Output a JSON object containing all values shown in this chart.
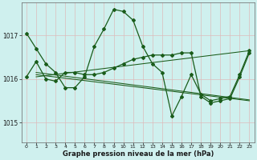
{
  "xlabel": "Graphe pression niveau de la mer (hPa)",
  "background_color": "#cff0ee",
  "grid_color": "#aaddcc",
  "line_color": "#1a5c1a",
  "ylim": [
    1014.55,
    1017.75
  ],
  "yticks": [
    1015,
    1016,
    1017
  ],
  "xlim": [
    -0.5,
    23.5
  ],
  "xticks": [
    0,
    1,
    2,
    3,
    4,
    5,
    6,
    7,
    8,
    9,
    10,
    11,
    12,
    13,
    14,
    15,
    16,
    17,
    18,
    19,
    20,
    21,
    22,
    23
  ],
  "series1": [
    1017.05,
    1016.7,
    1016.35,
    1016.15,
    1015.8,
    1015.8,
    1016.05,
    1016.75,
    1017.15,
    1017.6,
    1017.55,
    1017.35,
    1016.75,
    1016.35,
    1016.15,
    1015.15,
    1015.6,
    1016.1,
    1015.65,
    1015.5,
    1015.55,
    1015.6,
    1016.1,
    1016.65
  ],
  "series2": [
    1016.05,
    1016.4,
    1016.0,
    1015.95,
    1016.15,
    1016.15,
    1016.1,
    1016.1,
    1016.15,
    1016.25,
    1016.35,
    1016.45,
    1016.5,
    1016.55,
    1016.55,
    1016.55,
    1016.6,
    1016.6,
    1015.6,
    1015.45,
    1015.5,
    1015.55,
    1016.05,
    1016.6
  ],
  "trend1_x": [
    1,
    23
  ],
  "trend1_y": [
    1016.05,
    1016.65
  ],
  "trend2_x": [
    1,
    23
  ],
  "trend2_y": [
    1016.1,
    1015.5
  ],
  "trend3_x": [
    1,
    23
  ],
  "trend3_y": [
    1016.15,
    1015.52
  ]
}
